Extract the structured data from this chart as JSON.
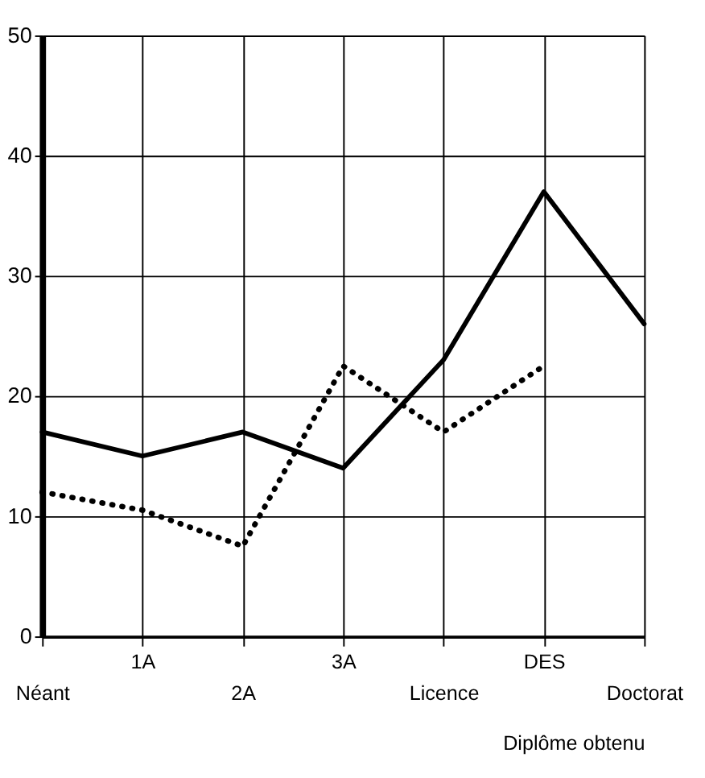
{
  "chart_data": {
    "type": "line",
    "xlabel": "Diplôme obtenu",
    "categories": [
      "Néant",
      "1A",
      "2A",
      "3A",
      "Licence",
      "DES",
      "Doctorat"
    ],
    "series": [
      {
        "color": "#000000",
        "line_style": "solid",
        "values": [
          17,
          15,
          17,
          14,
          23,
          37,
          26
        ]
      },
      {
        "color": "#000000",
        "line_style": "dotted",
        "values": [
          12,
          10.5,
          7.5,
          22.5,
          17,
          22.5,
          null
        ]
      }
    ],
    "ylim": [
      0,
      50
    ],
    "yticks": [
      0,
      10,
      20,
      30,
      40,
      50
    ],
    "grid": true,
    "marker": "none"
  }
}
